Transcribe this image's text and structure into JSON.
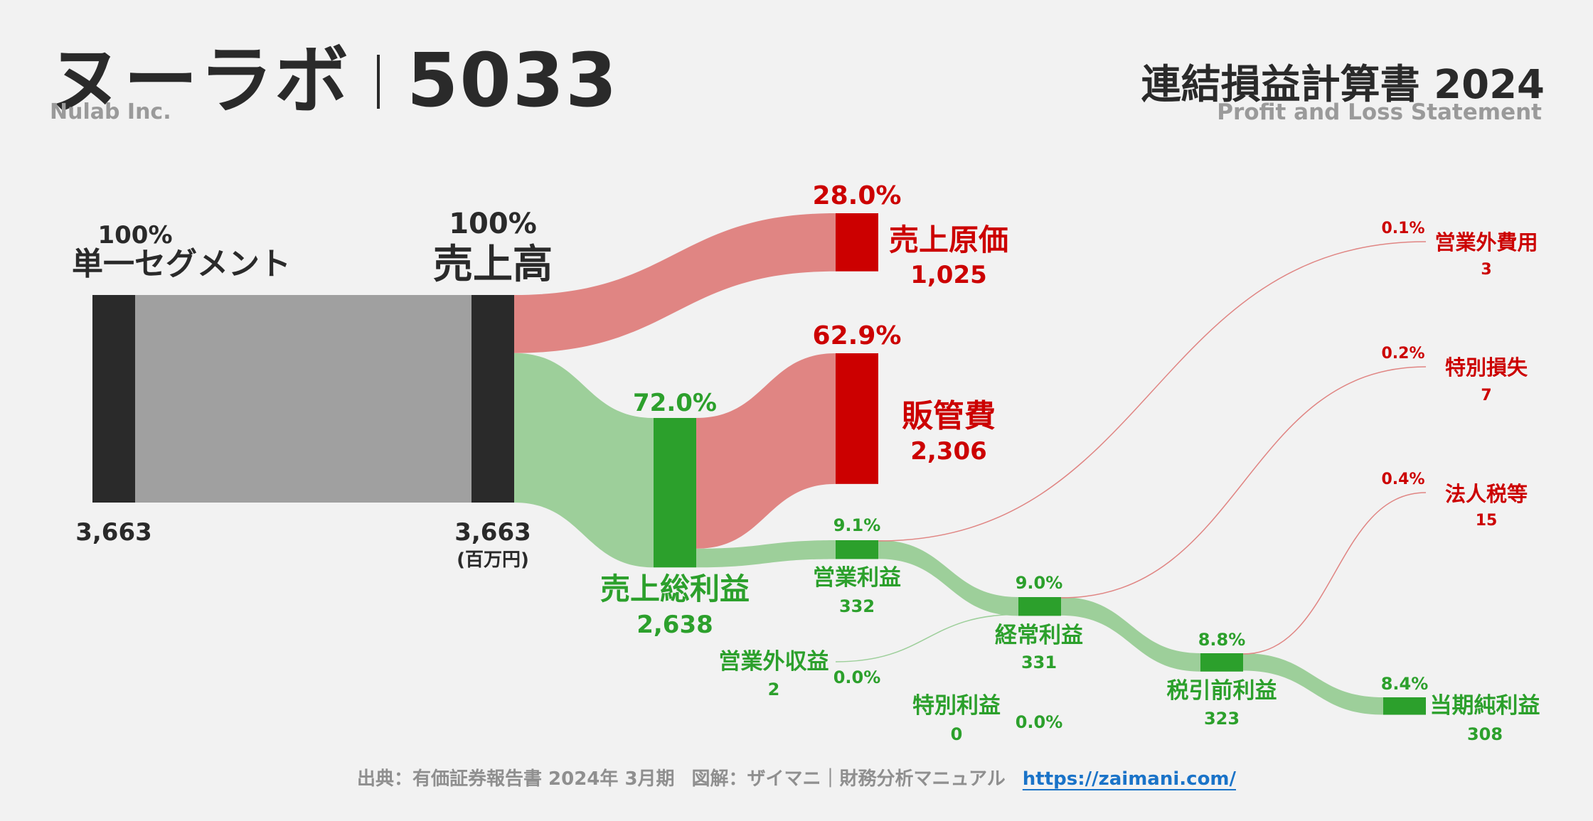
{
  "header": {
    "company": "ヌーラボ",
    "ticker": "5033",
    "company_en": "Nulab Inc.",
    "statement_title": "連結損益計算書 2024",
    "statement_subtitle": "Profit and Loss Statement"
  },
  "colors": {
    "red": "#cc0000",
    "green": "#2ca02c",
    "dark": "#2a2a2a",
    "gray_flow": "#a0a0a0",
    "red_flow": "#e08583",
    "green_flow": "#9dcf9a"
  },
  "chart_data": {
    "type": "sankey",
    "unit": "(百万円)",
    "segments": [
      {
        "name": "単一セグメント",
        "value": 3663,
        "value_label": "3,663",
        "pct": "100%"
      }
    ],
    "revenue": {
      "name": "売上高",
      "value": 3663,
      "value_label": "3,663",
      "pct": "100%"
    },
    "cost_of_sales": {
      "name": "売上原価",
      "value": 1025,
      "value_label": "1,025",
      "pct": "28.0%"
    },
    "gross_profit": {
      "name": "売上総利益",
      "value": 2638,
      "value_label": "2,638",
      "pct": "72.0%"
    },
    "sga": {
      "name": "販管費",
      "value": 2306,
      "value_label": "2,306",
      "pct": "62.9%"
    },
    "operating_profit": {
      "name": "営業利益",
      "value": 332,
      "value_label": "332",
      "pct": "9.1%"
    },
    "non_operating_income": {
      "name": "営業外収益",
      "value": 2,
      "value_label": "2",
      "pct": "0.0%"
    },
    "non_operating_expenses": {
      "name": "営業外費用",
      "value": 3,
      "value_label": "3",
      "pct": "0.1%"
    },
    "ordinary_profit": {
      "name": "経常利益",
      "value": 331,
      "value_label": "331",
      "pct": "9.0%"
    },
    "extraordinary_income": {
      "name": "特別利益",
      "value": 0,
      "value_label": "0",
      "pct": "0.0%"
    },
    "extraordinary_loss": {
      "name": "特別損失",
      "value": 7,
      "value_label": "7",
      "pct": "0.2%"
    },
    "pretax_profit": {
      "name": "税引前利益",
      "value": 323,
      "value_label": "323",
      "pct": "8.8%"
    },
    "income_taxes": {
      "name": "法人税等",
      "value": 15,
      "value_label": "15",
      "pct": "0.4%"
    },
    "net_profit": {
      "name": "当期純利益",
      "value": 308,
      "value_label": "308",
      "pct": "8.4%"
    }
  },
  "footer": {
    "source": "出典：有価証券報告書 2024年 3月期",
    "credit": "図解：ザイマニ｜財務分析マニュアル",
    "url": "https://zaimani.com/"
  }
}
